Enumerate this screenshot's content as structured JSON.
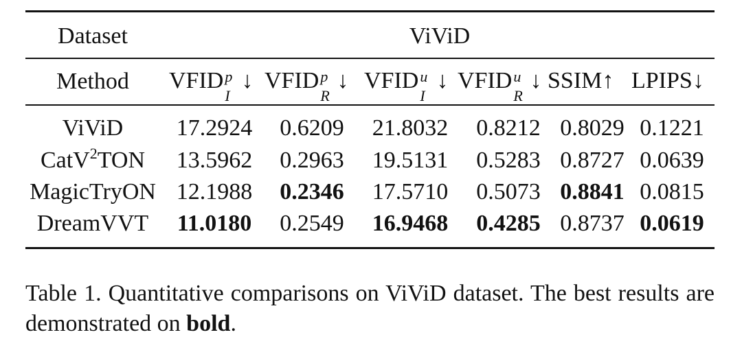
{
  "table": {
    "dataset_label": "Dataset",
    "dataset_name": "ViViD",
    "method_label": "Method",
    "columns": [
      {
        "base": "VFID",
        "sub": "I",
        "sup": "p",
        "arrow": "↓"
      },
      {
        "base": "VFID",
        "sub": "R",
        "sup": "p",
        "arrow": "↓"
      },
      {
        "base": "VFID",
        "sub": "I",
        "sup": "u",
        "arrow": "↓"
      },
      {
        "base": "VFID",
        "sub": "R",
        "sup": "u",
        "arrow": "↓"
      },
      {
        "base": "SSIM",
        "sub": "",
        "sup": "",
        "arrow": "↑"
      },
      {
        "base": "LPIPS",
        "sub": "",
        "sup": "",
        "arrow": "↓"
      }
    ],
    "rows": [
      {
        "method": "ViViD",
        "method_sup": "",
        "method_tail": "",
        "values": [
          "17.2924",
          "0.6209",
          "21.8032",
          "0.8212",
          "0.8029",
          "0.1221"
        ],
        "bold": [
          false,
          false,
          false,
          false,
          false,
          false
        ]
      },
      {
        "method": "CatV",
        "method_sup": "2",
        "method_tail": "TON",
        "values": [
          "13.5962",
          "0.2963",
          "19.5131",
          "0.5283",
          "0.8727",
          "0.0639"
        ],
        "bold": [
          false,
          false,
          false,
          false,
          false,
          false
        ]
      },
      {
        "method": "MagicTryON",
        "method_sup": "",
        "method_tail": "",
        "values": [
          "12.1988",
          "0.2346",
          "17.5710",
          "0.5073",
          "0.8841",
          "0.0815"
        ],
        "bold": [
          false,
          true,
          false,
          false,
          true,
          false
        ]
      },
      {
        "method": "DreamVVT",
        "method_sup": "",
        "method_tail": "",
        "values": [
          "11.0180",
          "0.2549",
          "16.9468",
          "0.4285",
          "0.8737",
          "0.0619"
        ],
        "bold": [
          true,
          false,
          true,
          true,
          false,
          true
        ]
      }
    ]
  },
  "caption": {
    "prefix": "Table 1.  Quantitative comparisons on ViViD dataset.  The best results are demonstrated on ",
    "bold_word": "bold",
    "suffix": "."
  }
}
